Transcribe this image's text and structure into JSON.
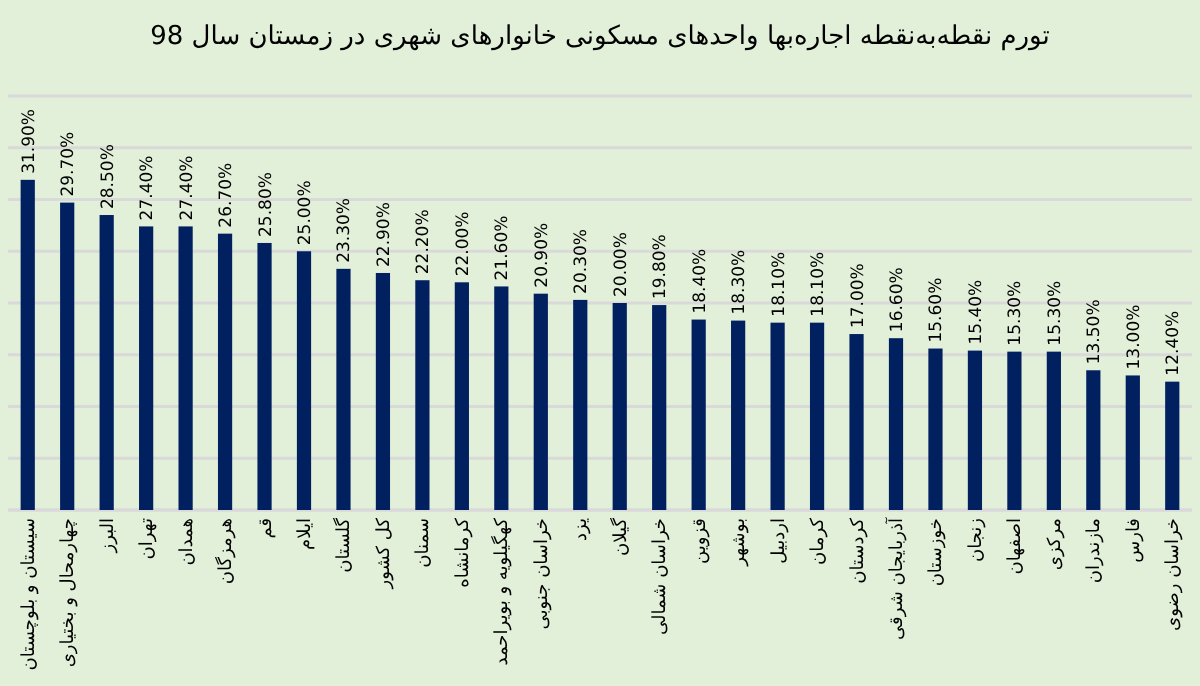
{
  "chart_data": {
    "type": "bar",
    "title": "تورم نقطه‌به‌نقطه اجاره‌بها واحدهای مسکونی خانوارهای شهری در زمستان سال 98",
    "categories": [
      "سیستان و بلوچستان",
      "چهارمحال و بختیاری",
      "البرز",
      "تهران",
      "همدان",
      "هرمزگان",
      "قم",
      "ایلام",
      "گلستان",
      "کل کشور",
      "سمنان",
      "کرمانشاه",
      "کهگیلویه و بویراحمد",
      "خراسان جنوبی",
      "یزد",
      "گیلان",
      "خراسان شمالی",
      "قزوین",
      "بوشهر",
      "اردبیل",
      "کرمان",
      "کردستان",
      "آذربایجان شرقی",
      "خوزستان",
      "زنجان",
      "اصفهان",
      "مرکزی",
      "مازندران",
      "فارس",
      "خراسان رضوی"
    ],
    "values": [
      31.9,
      29.7,
      28.5,
      27.4,
      27.4,
      26.7,
      25.8,
      25.0,
      23.3,
      22.9,
      22.2,
      22.0,
      21.6,
      20.9,
      20.3,
      20.0,
      19.8,
      18.4,
      18.3,
      18.1,
      18.1,
      17.0,
      16.6,
      15.6,
      15.4,
      15.3,
      15.3,
      13.5,
      13.0,
      12.4
    ],
    "value_labels": [
      "31.90%",
      "29.70%",
      "28.50%",
      "27.40%",
      "27.40%",
      "26.70%",
      "25.80%",
      "25.00%",
      "23.30%",
      "22.90%",
      "22.20%",
      "22.00%",
      "21.60%",
      "20.90%",
      "20.30%",
      "20.00%",
      "19.80%",
      "18.40%",
      "18.30%",
      "18.10%",
      "18.10%",
      "17.00%",
      "16.60%",
      "15.60%",
      "15.40%",
      "15.30%",
      "15.30%",
      "13.50%",
      "13.00%",
      "12.40%"
    ],
    "color": "#002060",
    "ylim": [
      0,
      40
    ],
    "yticks": [
      {
        "value": 0,
        "label": null
      },
      {
        "value": 5,
        "label": null
      },
      {
        "value": 10,
        "label": null
      },
      {
        "value": 15,
        "label": null
      },
      {
        "value": 20,
        "label": null
      },
      {
        "value": 25,
        "label": null
      },
      {
        "value": 30,
        "label": null
      },
      {
        "value": 35,
        "label": null
      },
      {
        "value": 40,
        "label": null
      }
    ],
    "grid": "y",
    "tick_labels": "x"
  }
}
